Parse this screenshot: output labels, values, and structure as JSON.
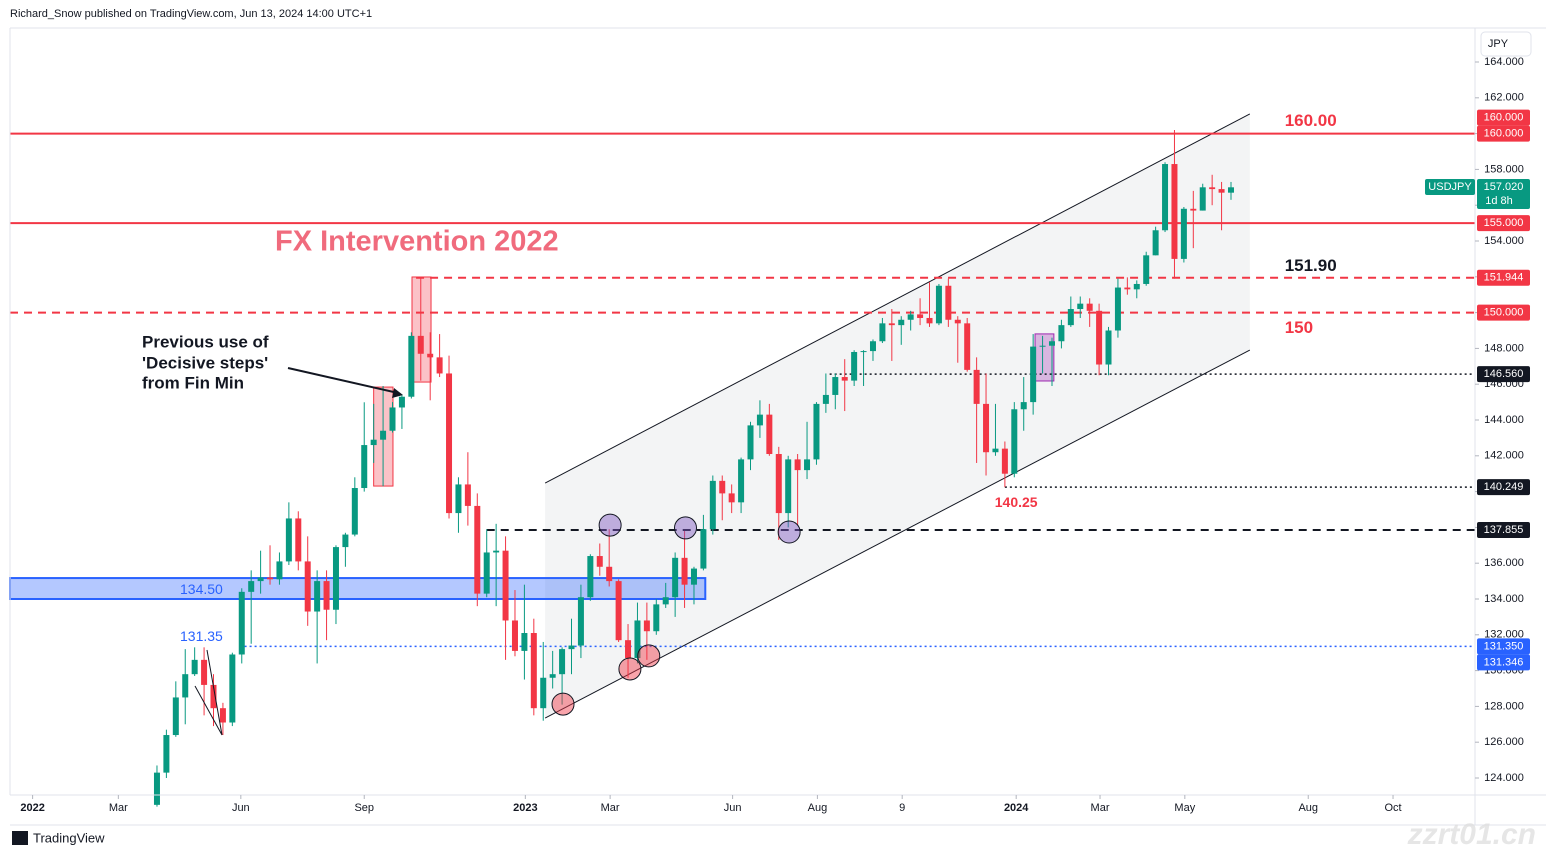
{
  "header": "Richard_Snow published on TradingView.com, Jun 13, 2024 14:00 UTC+1",
  "footer": "TradingView",
  "watermark": "zzrt01.cn",
  "chart_data": {
    "type": "candlestick",
    "currency": "JPY",
    "symbol": "USDJPY",
    "last_price": {
      "value": 157.02,
      "label": "157.020"
    },
    "countdown": "1d 8h",
    "up_color": "#089981",
    "down_color": "#f23645",
    "open": [
      122.5,
      124.3,
      126.4,
      128.5,
      129.8,
      130.6,
      129.2,
      127.9,
      127.1,
      130.9,
      134.4,
      135.0,
      135.2,
      135.1,
      136.1,
      138.5,
      136.1,
      133.3,
      135.0,
      133.4,
      136.9,
      137.6,
      140.2,
      142.6,
      142.9,
      143.4,
      144.7,
      145.3,
      148.7,
      147.7,
      147.5,
      146.6,
      138.8,
      140.4,
      139.2,
      134.3,
      136.6,
      136.7,
      132.8,
      131.1,
      132.1,
      127.9,
      129.6,
      129.8,
      131.2,
      131.4,
      134.1,
      136.4,
      135.8,
      135.0,
      131.7,
      130.7,
      132.8,
      132.2,
      133.7,
      134.1,
      136.3,
      134.8,
      135.7,
      137.9,
      140.6,
      139.9,
      139.4,
      141.8,
      143.7,
      144.3,
      142.1,
      138.8,
      141.8,
      141.2,
      141.8,
      144.9,
      145.4,
      146.4,
      146.2,
      147.8,
      147.85,
      148.4,
      149.4,
      149.3,
      149.6,
      149.9,
      149.7,
      149.4,
      151.5,
      149.6,
      149.4,
      146.8,
      144.9,
      142.2,
      142.4,
      141.0,
      144.6,
      145.0,
      148.1,
      148.15,
      148.4,
      149.3,
      150.2,
      150.5,
      150.1,
      147.1,
      149.0,
      151.4,
      151.3,
      151.6,
      153.2,
      154.6,
      158.3,
      153.0,
      155.8,
      155.7,
      157.0,
      156.9,
      156.7
    ],
    "high": [
      124.7,
      126.7,
      129.4,
      131.2,
      131.3,
      131.3,
      129.8,
      128.2,
      131.0,
      134.6,
      135.6,
      136.7,
      137.0,
      136.6,
      139.4,
      138.9,
      137.5,
      135.6,
      135.6,
      137.0,
      137.7,
      140.8,
      144.99,
      144.9,
      145.9,
      145.0,
      145.4,
      148.9,
      151.94,
      148.9,
      148.8,
      147.6,
      140.8,
      142.2,
      139.9,
      137.9,
      138.2,
      137.5,
      134.5,
      134.8,
      132.9,
      131.6,
      131.1,
      131.3,
      132.9,
      134.8,
      136.5,
      137.1,
      137.9,
      135.1,
      132.6,
      133.8,
      133.8,
      134.0,
      134.9,
      136.6,
      137.8,
      135.8,
      138.7,
      140.9,
      140.9,
      140.4,
      141.9,
      143.9,
      145.1,
      144.9,
      142.5,
      142.0,
      142.1,
      143.9,
      145.0,
      146.6,
      146.6,
      147.4,
      147.9,
      147.9,
      148.5,
      149.7,
      150.2,
      149.8,
      150.1,
      150.8,
      151.7,
      151.6,
      151.9,
      149.8,
      149.7,
      147.5,
      146.6,
      144.9,
      142.8,
      145.0,
      146.4,
      148.8,
      148.7,
      148.6,
      149.6,
      150.9,
      150.9,
      150.8,
      150.5,
      149.2,
      151.9,
      151.97,
      151.8,
      153.4,
      154.8,
      158.4,
      160.2,
      155.9,
      156.8,
      157.2,
      157.7,
      157.3,
      157.3
    ],
    "low": [
      122.4,
      124.0,
      126.3,
      127.0,
      129.7,
      127.5,
      126.9,
      126.4,
      126.9,
      130.4,
      131.5,
      134.3,
      134.8,
      134.8,
      135.9,
      135.6,
      132.5,
      130.4,
      131.7,
      132.6,
      135.8,
      137.5,
      140.0,
      141.6,
      140.3,
      143.3,
      143.5,
      145.2,
      146.2,
      145.1,
      146.4,
      138.5,
      137.7,
      138.1,
      133.6,
      134.1,
      133.6,
      130.6,
      130.8,
      129.5,
      127.5,
      127.2,
      129.0,
      128.1,
      129.8,
      130.7,
      133.9,
      135.3,
      134.7,
      131.6,
      129.6,
      130.4,
      130.6,
      132.0,
      133.5,
      133.0,
      133.5,
      133.7,
      135.6,
      137.6,
      138.4,
      138.8,
      138.8,
      141.2,
      143.0,
      142.0,
      137.3,
      138.0,
      138.1,
      140.7,
      141.5,
      144.4,
      144.6,
      144.5,
      145.9,
      145.9,
      147.3,
      148.3,
      147.3,
      148.2,
      149.0,
      149.3,
      149.2,
      149.3,
      149.2,
      147.2,
      146.7,
      141.6,
      140.9,
      142.0,
      140.25,
      140.8,
      143.4,
      144.3,
      146.6,
      145.9,
      148.0,
      149.2,
      149.7,
      149.2,
      146.5,
      146.5,
      148.6,
      151.0,
      150.8,
      151.5,
      153.2,
      154.5,
      151.9,
      152.8,
      153.6,
      155.7,
      156.0,
      154.6,
      156.3
    ],
    "close": [
      124.3,
      126.4,
      128.5,
      129.8,
      130.6,
      129.2,
      127.9,
      127.1,
      130.9,
      134.4,
      135.0,
      135.2,
      135.1,
      136.1,
      138.5,
      136.1,
      133.3,
      135.0,
      133.4,
      136.9,
      137.6,
      140.2,
      142.6,
      142.9,
      143.4,
      144.7,
      145.3,
      148.7,
      147.7,
      147.5,
      146.6,
      138.8,
      140.4,
      139.2,
      134.3,
      136.6,
      136.7,
      132.8,
      131.1,
      132.1,
      127.9,
      129.6,
      129.8,
      131.2,
      131.4,
      134.1,
      136.4,
      135.8,
      135.0,
      131.7,
      130.7,
      132.8,
      132.2,
      133.7,
      134.1,
      136.3,
      134.8,
      135.7,
      137.9,
      140.6,
      139.9,
      139.4,
      141.8,
      143.7,
      144.3,
      142.1,
      138.8,
      141.8,
      141.2,
      141.8,
      144.9,
      145.4,
      146.4,
      146.2,
      147.8,
      147.85,
      148.4,
      149.4,
      149.3,
      149.6,
      149.9,
      149.7,
      149.4,
      151.5,
      149.6,
      149.4,
      146.8,
      144.9,
      142.2,
      142.4,
      141.0,
      144.6,
      145.0,
      148.1,
      148.15,
      148.4,
      149.3,
      150.2,
      150.5,
      150.1,
      147.1,
      149.0,
      151.4,
      151.3,
      151.6,
      153.2,
      154.6,
      158.3,
      153.0,
      155.8,
      155.7,
      157.0,
      156.9,
      156.7,
      157.0
    ],
    "xlim": [
      -15.6,
      139.9
    ],
    "xticks": [
      {
        "value": -13.2,
        "label": "2022"
      },
      {
        "value": -4.1,
        "label": "Mar"
      },
      {
        "value": 8.9,
        "label": "Jun"
      },
      {
        "value": 22.0,
        "label": "Sep"
      },
      {
        "value": 39.1,
        "label": "2023"
      },
      {
        "value": 48.1,
        "label": "Mar"
      },
      {
        "value": 61.1,
        "label": "Jun"
      },
      {
        "value": 70.1,
        "label": "Aug"
      },
      {
        "value": 79.1,
        "label": "9"
      },
      {
        "value": 91.2,
        "label": "2024"
      },
      {
        "value": 100.1,
        "label": "Mar"
      },
      {
        "value": 109.1,
        "label": "May"
      },
      {
        "value": 122.2,
        "label": "Aug"
      },
      {
        "value": 131.2,
        "label": "Oct"
      }
    ],
    "ylim": [
      123.05,
      165.9
    ],
    "yticks": [
      {
        "value": 124,
        "label": "124.000"
      },
      {
        "value": 126,
        "label": "126.000"
      },
      {
        "value": 128,
        "label": "128.000"
      },
      {
        "value": 130,
        "label": "130.000"
      },
      {
        "value": 132,
        "label": "132.000"
      },
      {
        "value": 134,
        "label": "134.000"
      },
      {
        "value": 136,
        "label": "136.000"
      },
      {
        "value": 138,
        "label": "138.000"
      },
      {
        "value": 140,
        "label": "140.000"
      },
      {
        "value": 142,
        "label": "142.000"
      },
      {
        "value": 144,
        "label": "144.000"
      },
      {
        "value": 146,
        "label": "146.000"
      },
      {
        "value": 148,
        "label": "148.000"
      },
      {
        "value": 150,
        "label": "150.000"
      },
      {
        "value": 152,
        "label": "152.000"
      },
      {
        "value": 154,
        "label": "154.000"
      },
      {
        "value": 156,
        "label": "156.000"
      },
      {
        "value": 158,
        "label": "158.000"
      },
      {
        "value": 160,
        "label": "160.000"
      },
      {
        "value": 162,
        "label": "162.000"
      },
      {
        "value": 164,
        "label": "164.000"
      }
    ],
    "levels": [
      {
        "value": 160,
        "box_labels": [
          "160.000",
          "160.000"
        ],
        "color": "#f23645",
        "style": "solid",
        "from": -15.6
      },
      {
        "value": 155,
        "box_labels": [
          "155.000"
        ],
        "color": "#f23645",
        "style": "solid",
        "from": -15.6
      },
      {
        "value": 151.944,
        "box_labels": [
          "151.944"
        ],
        "color": "#f23645",
        "style": "dashed",
        "from": 27.5
      },
      {
        "value": 150,
        "box_labels": [
          "150.000"
        ],
        "color": "#f23645",
        "style": "dashed",
        "from": -15.6
      },
      {
        "value": 146.56,
        "box_labels": [
          "146.560"
        ],
        "color": "#131722",
        "style": "dotted",
        "from": 71.4
      },
      {
        "value": 140.249,
        "box_labels": [
          "140.249"
        ],
        "color": "#131722",
        "style": "dotted",
        "from": 90.0
      },
      {
        "value": 137.855,
        "box_labels": [
          "137.855"
        ],
        "color": "#131722",
        "style": "dashed",
        "from": 35.0
      },
      {
        "value": 131.35,
        "box_labels": [
          "131.350",
          "131.346"
        ],
        "color": "#2962ff",
        "style": "dotted",
        "from": 9.3
      }
    ],
    "annotations": [
      {
        "value": 160,
        "label": "160.00",
        "x": 119.7,
        "color": "#f23645",
        "placement": "above"
      },
      {
        "value": 151.9,
        "label": "151.90",
        "x": 119.7,
        "color": "#131722",
        "placement": "above"
      },
      {
        "value": 150,
        "label": "150",
        "x": 119.7,
        "color": "#f23645",
        "placement": "below"
      },
      {
        "value": 140.25,
        "label": "140.25",
        "x": 91.2,
        "color": "#f23645",
        "placement": "below"
      }
    ],
    "zone": {
      "low": 134.0,
      "high": 135.17,
      "from": -15.6,
      "to": 58.2,
      "color": "#2962ff",
      "label": {
        "value": 134.5,
        "label": "134.50"
      }
    },
    "support_label": {
      "value": 131.35,
      "label": "131.35"
    },
    "channel": {
      "upper": [
        [
          41.2,
          140.48
        ],
        [
          116.0,
          161.1
        ]
      ],
      "lower": [
        [
          41.2,
          127.35
        ],
        [
          116.0,
          147.91
        ]
      ]
    },
    "highlights": [
      {
        "x": [
          23.0,
          25.05
        ],
        "y": [
          140.31,
          145.84
        ],
        "color": "#f23645"
      },
      {
        "x": [
          27.07,
          29.09
        ],
        "y": [
          146.12,
          151.99
        ],
        "color": "#f23645"
      },
      {
        "x": [
          93.2,
          95.2
        ],
        "y": [
          146.18,
          148.81
        ],
        "color": "#9c27b0"
      }
    ],
    "markers": [
      {
        "x": 43.1,
        "y": 128.13,
        "color": "#f23645"
      },
      {
        "x": 50.2,
        "y": 130.09,
        "color": "#f23645"
      },
      {
        "x": 52.2,
        "y": 130.82,
        "color": "#f23645"
      },
      {
        "x": 48.1,
        "y": 138.13,
        "color": "#7e57c2"
      },
      {
        "x": 56.1,
        "y": 137.97,
        "color": "#7e57c2"
      },
      {
        "x": 67.1,
        "y": 137.74,
        "color": "#7e57c2"
      }
    ],
    "title": "FX Intervention 2022",
    "note": [
      "Previous use of",
      "'Decisive steps'",
      "from Fin Min"
    ]
  }
}
